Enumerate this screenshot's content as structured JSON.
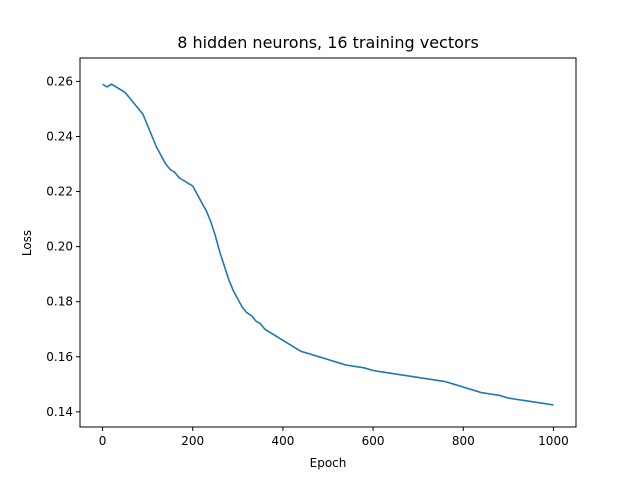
{
  "chart_data": {
    "type": "line",
    "title": "8 hidden neurons, 16 training vectors",
    "xlabel": "Epoch",
    "ylabel": "Loss",
    "xlim": [
      -50,
      1050
    ],
    "ylim": [
      0.1345,
      0.2685
    ],
    "xticks": [
      0,
      200,
      400,
      600,
      800,
      1000
    ],
    "yticks": [
      0.14,
      0.16,
      0.18,
      0.2,
      0.22,
      0.24,
      0.26
    ],
    "ytick_labels": [
      "0.14",
      "0.16",
      "0.18",
      "0.20",
      "0.22",
      "0.24",
      "0.26"
    ],
    "grid": false,
    "legend": "none",
    "series": [
      {
        "color": "#1f77b4",
        "x": [
          0,
          10,
          20,
          30,
          40,
          50,
          60,
          70,
          80,
          90,
          100,
          110,
          120,
          130,
          140,
          150,
          160,
          170,
          180,
          190,
          200,
          210,
          220,
          230,
          240,
          250,
          260,
          270,
          280,
          290,
          300,
          310,
          320,
          330,
          340,
          350,
          360,
          380,
          400,
          420,
          440,
          460,
          480,
          500,
          520,
          540,
          560,
          580,
          600,
          620,
          640,
          660,
          680,
          700,
          720,
          740,
          760,
          780,
          800,
          820,
          840,
          860,
          880,
          900,
          920,
          940,
          960,
          980,
          1000
        ],
        "y": [
          0.259,
          0.258,
          0.259,
          0.258,
          0.257,
          0.256,
          0.254,
          0.252,
          0.25,
          0.248,
          0.244,
          0.24,
          0.236,
          0.233,
          0.23,
          0.228,
          0.227,
          0.225,
          0.224,
          0.223,
          0.222,
          0.219,
          0.216,
          0.213,
          0.209,
          0.204,
          0.198,
          0.193,
          0.188,
          0.184,
          0.181,
          0.178,
          0.176,
          0.175,
          0.173,
          0.172,
          0.17,
          0.168,
          0.166,
          0.164,
          0.162,
          0.161,
          0.16,
          0.159,
          0.158,
          0.157,
          0.1565,
          0.156,
          0.155,
          0.1545,
          0.154,
          0.1535,
          0.153,
          0.1525,
          0.152,
          0.1515,
          0.151,
          0.15,
          0.149,
          0.148,
          0.147,
          0.1465,
          0.146,
          0.145,
          0.1445,
          0.144,
          0.1435,
          0.143,
          0.1425
        ]
      }
    ]
  }
}
